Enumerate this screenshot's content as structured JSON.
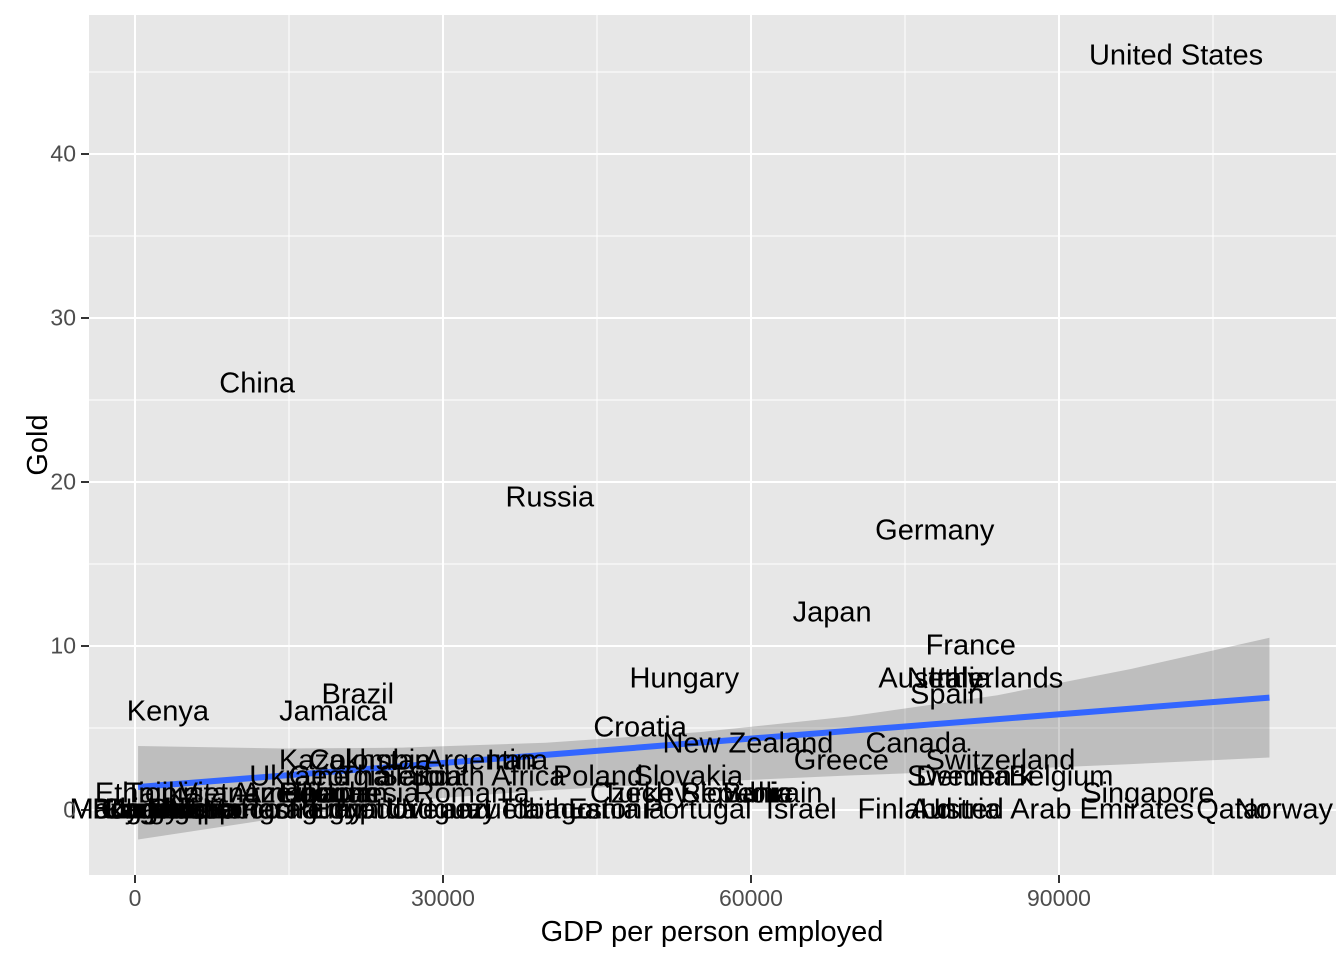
{
  "figure": {
    "kind": "ggplot-scatter-with-text-labels",
    "x_axis_title": "GDP per person employed",
    "y_axis_title": "Gold",
    "colors": {
      "panel_background": "#E7E7E7",
      "gridline": "#FFFFFF",
      "regression_line": "#3366FF",
      "confidence_band": "rgba(85,85,85,0.28)",
      "label_text": "#000000",
      "tick_text": "#4D4D4D",
      "tick_mark": "#333333"
    }
  },
  "chart_data": {
    "type": "scatter",
    "title": "",
    "xlabel": "GDP per person employed",
    "ylabel": "Gold",
    "xlim": [
      -4500,
      117000
    ],
    "ylim": [
      -4,
      48.5
    ],
    "grid": true,
    "legend": "none",
    "x_ticks": [
      {
        "value": 0,
        "label": "0"
      },
      {
        "value": 30000,
        "label": "30000"
      },
      {
        "value": 60000,
        "label": "60000"
      },
      {
        "value": 90000,
        "label": "90000"
      }
    ],
    "x_minor_ticks": [
      15000,
      45000,
      75000,
      105000
    ],
    "y_ticks": [
      {
        "value": 0,
        "label": "0"
      },
      {
        "value": 10,
        "label": "10"
      },
      {
        "value": 20,
        "label": "20"
      },
      {
        "value": 30,
        "label": "30"
      },
      {
        "value": 40,
        "label": "40"
      }
    ],
    "y_minor_ticks": [
      5,
      15,
      25,
      35,
      45
    ],
    "points": [
      {
        "label": "United States",
        "gdp": 101400,
        "gold": 46
      },
      {
        "label": "China",
        "gdp": 11900,
        "gold": 26
      },
      {
        "label": "Russia",
        "gdp": 40400,
        "gold": 19
      },
      {
        "label": "Germany",
        "gdp": 77900,
        "gold": 17
      },
      {
        "label": "Japan",
        "gdp": 67900,
        "gold": 12
      },
      {
        "label": "France",
        "gdp": 81400,
        "gold": 10
      },
      {
        "label": "Hungary",
        "gdp": 53500,
        "gold": 8
      },
      {
        "label": "Australia",
        "gdp": 77900,
        "gold": 8
      },
      {
        "label": "Italy",
        "gdp": 79900,
        "gold": 8
      },
      {
        "label": "Netherlands",
        "gdp": 82800,
        "gold": 8
      },
      {
        "label": "Spain",
        "gdp": 79100,
        "gold": 7
      },
      {
        "label": "Brazil",
        "gdp": 21700,
        "gold": 7
      },
      {
        "label": "Kenya",
        "gdp": 3200,
        "gold": 6
      },
      {
        "label": "Jamaica",
        "gdp": 19300,
        "gold": 6
      },
      {
        "label": "Croatia",
        "gdp": 49200,
        "gold": 5
      },
      {
        "label": "New Zealand",
        "gdp": 59700,
        "gold": 4
      },
      {
        "label": "Canada",
        "gdp": 76100,
        "gold": 4
      },
      {
        "label": "Kazakhstan",
        "gdp": 21400,
        "gold": 3
      },
      {
        "label": "Colombia",
        "gdp": 22900,
        "gold": 3
      },
      {
        "label": "Argentina",
        "gdp": 34200,
        "gold": 3
      },
      {
        "label": "Iran",
        "gdp": 36700,
        "gold": 3
      },
      {
        "label": "Greece",
        "gdp": 68800,
        "gold": 3
      },
      {
        "label": "Switzerland",
        "gdp": 84300,
        "gold": 3
      },
      {
        "label": "Ukraine",
        "gdp": 16000,
        "gold": 2
      },
      {
        "label": "Georgia",
        "gdp": 20000,
        "gold": 2
      },
      {
        "label": "Thailand",
        "gdp": 25300,
        "gold": 2
      },
      {
        "label": "Serbia",
        "gdp": 27800,
        "gold": 2
      },
      {
        "label": "South Africa",
        "gdp": 34300,
        "gold": 2
      },
      {
        "label": "Poland",
        "gdp": 45100,
        "gold": 2
      },
      {
        "label": "Slovakia",
        "gdp": 53900,
        "gold": 2
      },
      {
        "label": "Sweden",
        "gdp": 80300,
        "gold": 2
      },
      {
        "label": "Denmark",
        "gdp": 81800,
        "gold": 2
      },
      {
        "label": "Belgium",
        "gdp": 90200,
        "gold": 2
      },
      {
        "label": "Ethiopia",
        "gdp": 1200,
        "gold": 1
      },
      {
        "label": "Tajikistan",
        "gdp": 4800,
        "gold": 1
      },
      {
        "label": "Vietnam",
        "gdp": 9400,
        "gold": 1
      },
      {
        "label": "Armenia",
        "gdp": 14600,
        "gold": 1
      },
      {
        "label": "Fiji",
        "gdp": 15800,
        "gold": 1
      },
      {
        "label": "Azerbaijan",
        "gdp": 17100,
        "gold": 1
      },
      {
        "label": "Belarus",
        "gdp": 18900,
        "gold": 1
      },
      {
        "label": "Jordan",
        "gdp": 20300,
        "gold": 1
      },
      {
        "label": "Indonesia",
        "gdp": 21600,
        "gold": 1
      },
      {
        "label": "Romania",
        "gdp": 32800,
        "gold": 1
      },
      {
        "label": "Turkey",
        "gdp": 49700,
        "gold": 1
      },
      {
        "label": "Czech Republic",
        "gdp": 54200,
        "gold": 1
      },
      {
        "label": "Slovenia",
        "gdp": 58600,
        "gold": 1
      },
      {
        "label": "Bahrain",
        "gdp": 62100,
        "gold": 1
      },
      {
        "label": "Singapore",
        "gdp": 98700,
        "gold": 1
      },
      {
        "label": "Burundi",
        "gdp": 700,
        "gold": 0
      },
      {
        "label": "Niger",
        "gdp": 1100,
        "gold": 0
      },
      {
        "label": "Madagascar",
        "gdp": 1400,
        "gold": 0
      },
      {
        "label": "Mozambique",
        "gdp": 1700,
        "gold": 0
      },
      {
        "label": "Uganda",
        "gdp": 2000,
        "gold": 0
      },
      {
        "label": "Cambodia",
        "gdp": 3100,
        "gold": 0
      },
      {
        "label": "Kyrgyzstan",
        "gdp": 4100,
        "gold": 0
      },
      {
        "label": "Nigeria",
        "gdp": 5600,
        "gold": 0
      },
      {
        "label": "India",
        "gdp": 6400,
        "gold": 0
      },
      {
        "label": "Philippines",
        "gdp": 8100,
        "gold": 0
      },
      {
        "label": "Morocco",
        "gdp": 8700,
        "gold": 0
      },
      {
        "label": "Mongolia",
        "gdp": 12300,
        "gold": 0
      },
      {
        "label": "Paraguay",
        "gdp": 16300,
        "gold": 0
      },
      {
        "label": "Peru",
        "gdp": 17900,
        "gold": 0
      },
      {
        "label": "Egypt",
        "gdp": 20600,
        "gold": 0
      },
      {
        "label": "Ecuador",
        "gdp": 22300,
        "gold": 0
      },
      {
        "label": "Uruguay",
        "gdp": 29900,
        "gold": 0
      },
      {
        "label": "Trinidad and Tobago",
        "gdp": 31800,
        "gold": 0
      },
      {
        "label": "Venezuela",
        "gdp": 32900,
        "gold": 0
      },
      {
        "label": "Lithuania",
        "gdp": 43400,
        "gold": 0
      },
      {
        "label": "Estonia",
        "gdp": 46900,
        "gold": 0
      },
      {
        "label": "Portugal",
        "gdp": 54800,
        "gold": 0
      },
      {
        "label": "Israel",
        "gdp": 64900,
        "gold": 0
      },
      {
        "label": "Finland",
        "gdp": 75000,
        "gold": 0
      },
      {
        "label": "Austria",
        "gdp": 79900,
        "gold": 0
      },
      {
        "label": "United Arab Emirates",
        "gdp": 89800,
        "gold": 0
      },
      {
        "label": "Qatar",
        "gdp": 106900,
        "gold": 0
      },
      {
        "label": "Norway",
        "gdp": 111900,
        "gold": 0
      }
    ],
    "trend": {
      "type": "linear fit with confidence band",
      "line": [
        {
          "gdp": 300,
          "gold": 1.4
        },
        {
          "gdp": 110500,
          "gold": 6.85
        }
      ],
      "band": [
        {
          "gdp": 300,
          "hi": 3.9,
          "lo": -1.8
        },
        {
          "gdp": 14500,
          "hi": 3.75,
          "lo": -0.45
        },
        {
          "gdp": 26000,
          "hi": 3.8,
          "lo": 0.55
        },
        {
          "gdp": 40000,
          "hi": 4.1,
          "lo": 1.2
        },
        {
          "gdp": 55000,
          "hi": 4.75,
          "lo": 1.7
        },
        {
          "gdp": 69500,
          "hi": 5.7,
          "lo": 2.1
        },
        {
          "gdp": 84000,
          "hi": 7.0,
          "lo": 2.45
        },
        {
          "gdp": 97000,
          "hi": 8.6,
          "lo": 2.8
        },
        {
          "gdp": 110500,
          "hi": 10.5,
          "lo": 3.2
        }
      ]
    }
  }
}
